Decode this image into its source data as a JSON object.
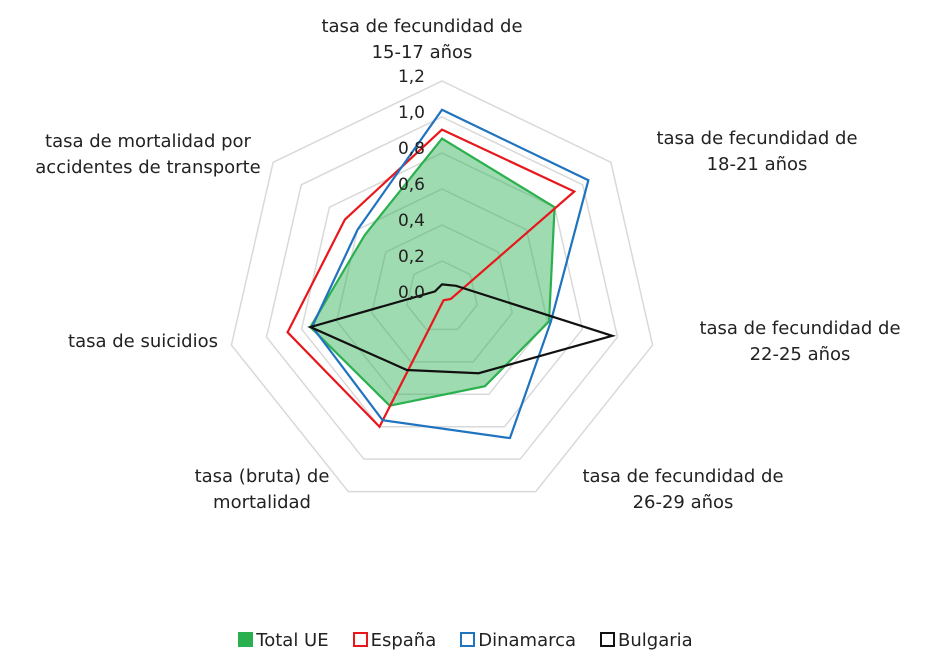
{
  "chart_data": {
    "type": "radar",
    "categories": [
      "tasa de fecundidad de 15-17 años",
      "tasa de fecundidad de 18-21 años",
      "tasa de fecundidad de 22-25 años",
      "tasa de fecundidad de 26-29 años",
      "tasa (bruta) de mortalidad",
      "tasa de suicidios",
      "tasa de mortalidad por accidentes de transporte"
    ],
    "series": [
      {
        "name": "Total UE",
        "color": "#2bb04f",
        "fill": true,
        "values": [
          0.88,
          0.8,
          0.61,
          0.55,
          0.67,
          0.75,
          0.55
        ]
      },
      {
        "name": "España",
        "color": "#e8171c",
        "values": [
          0.93,
          0.94,
          0.05,
          0.02,
          0.8,
          0.88,
          0.69
        ]
      },
      {
        "name": "Dinamarca",
        "color": "#1f73bf",
        "values": [
          1.04,
          1.04,
          0.62,
          0.87,
          0.76,
          0.74,
          0.6
        ]
      },
      {
        "name": "Bulgaria",
        "color": "#111111",
        "values": [
          0.07,
          0.1,
          0.97,
          0.47,
          0.45,
          0.75,
          0.05
        ]
      }
    ],
    "rlim": [
      0,
      1.2
    ],
    "rticks": [
      {
        "value": 0,
        "label": "0,0"
      },
      {
        "value": 0.2,
        "label": "0,2"
      },
      {
        "value": 0.4,
        "label": "0,4"
      },
      {
        "value": 0.6,
        "label": "0,6"
      },
      {
        "value": 0.8,
        "label": "0,8"
      },
      {
        "value": 1.0,
        "label": "1,0"
      },
      {
        "value": 1.2,
        "label": "1,2"
      }
    ],
    "grid": true
  }
}
